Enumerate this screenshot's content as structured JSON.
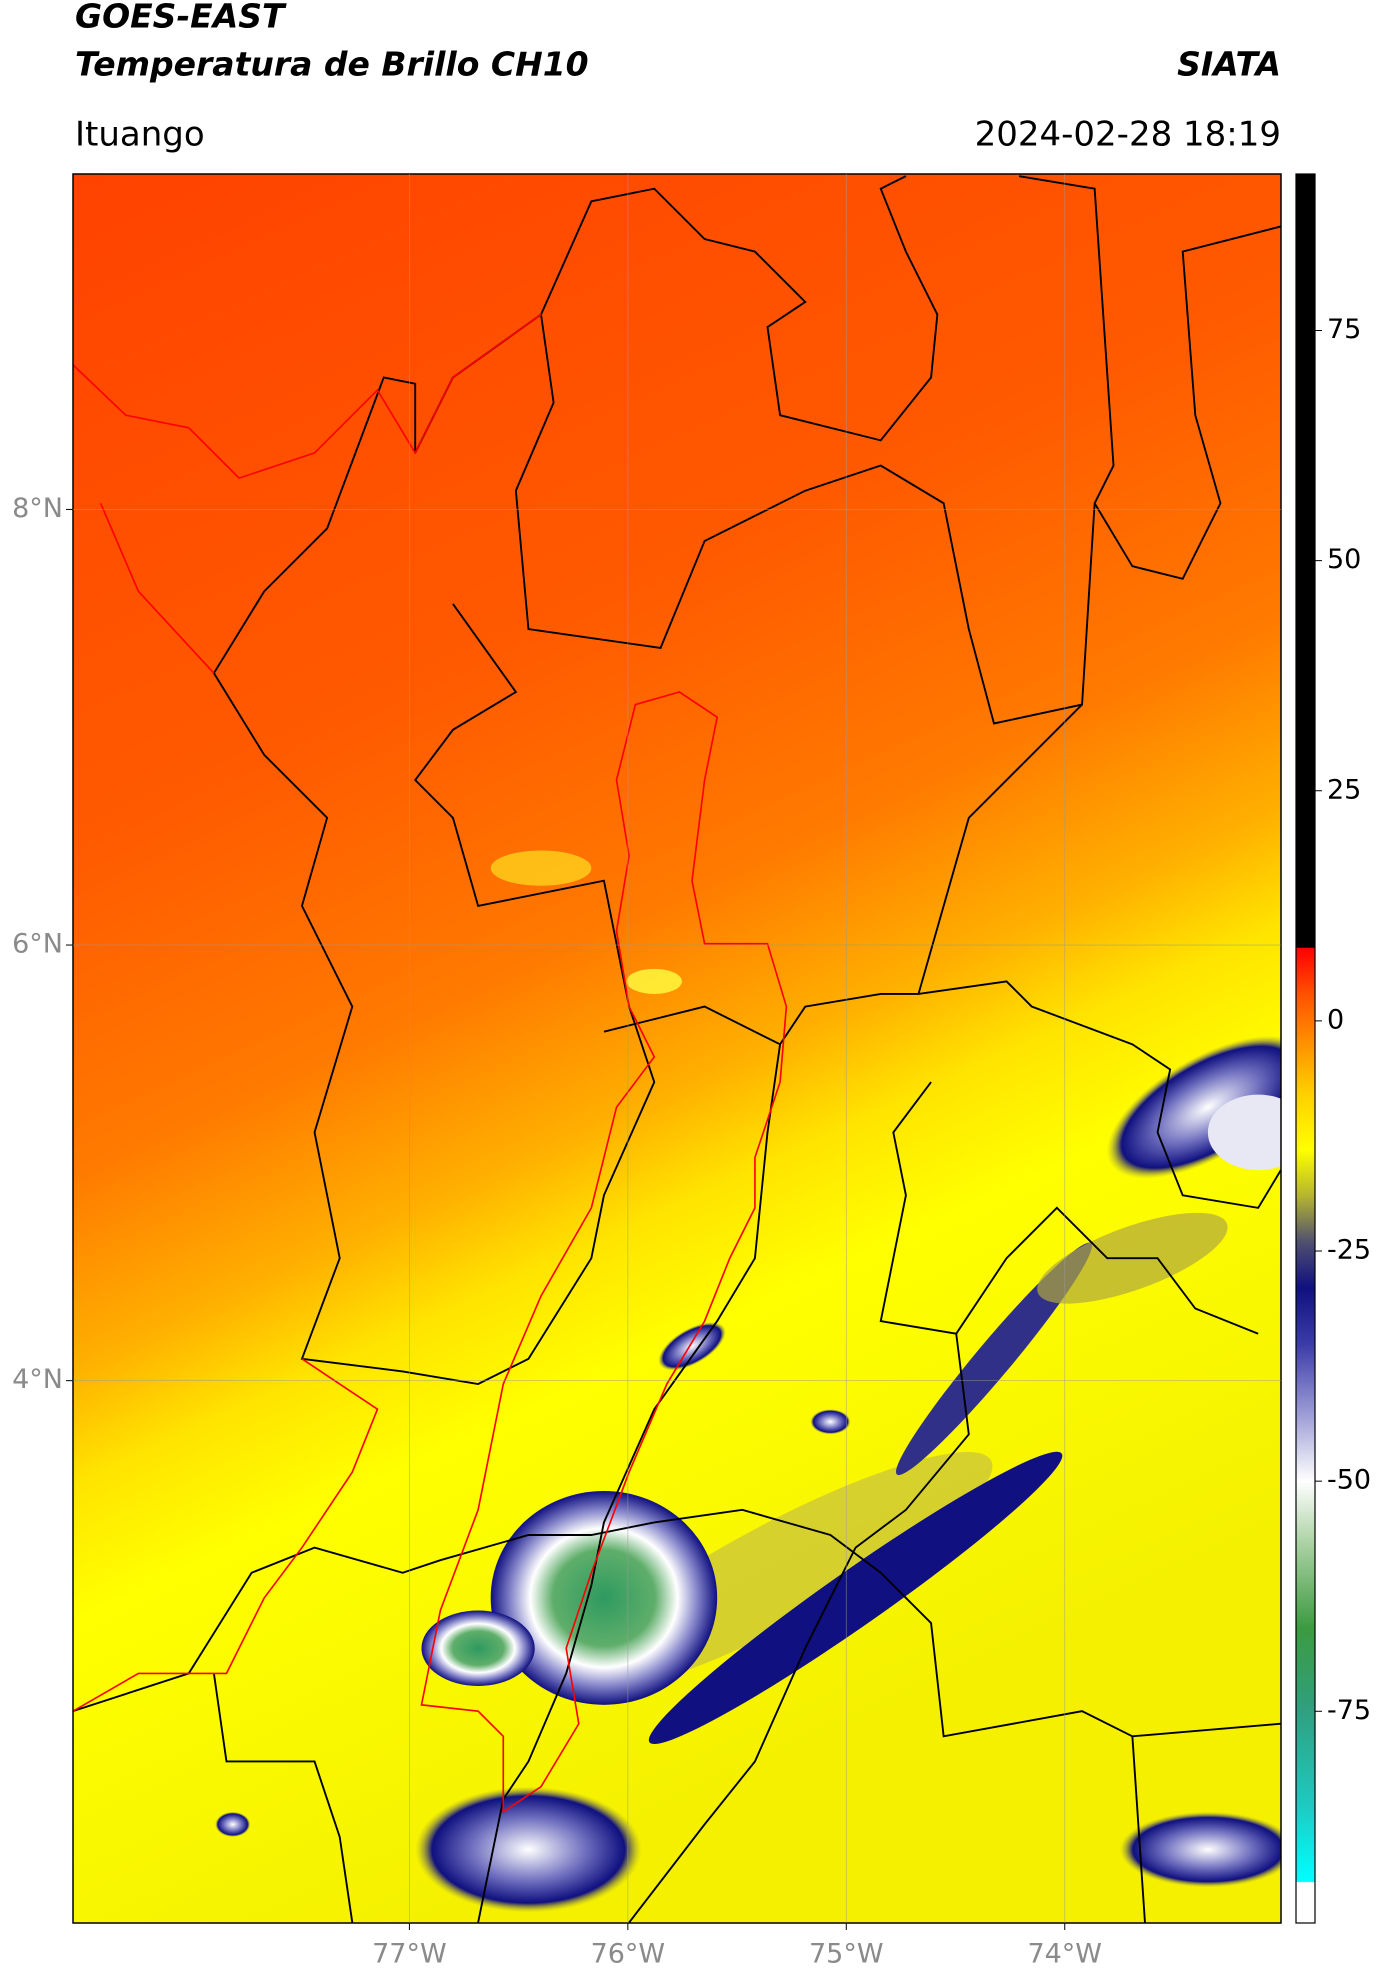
{
  "header": {
    "title": "GOES-EAST",
    "subtitle": "Temperatura de Brillo CH10",
    "source": "SIATA",
    "location": "Ituango",
    "datetime": "2024-02-28 18:19"
  },
  "map": {
    "lonlim": [
      -78.54,
      -73.01
    ],
    "latlim": [
      1.51,
      9.54
    ],
    "lonticks": [
      {
        "value": -77,
        "label": "77°W"
      },
      {
        "value": -76,
        "label": "76°W"
      },
      {
        "value": -75,
        "label": "75°W"
      },
      {
        "value": -74,
        "label": "74°W"
      }
    ],
    "latticks": [
      {
        "value": 8,
        "label": "8°N"
      },
      {
        "value": 6,
        "label": "6°N"
      },
      {
        "value": 4,
        "label": "4°N"
      }
    ],
    "grid": true
  },
  "colorbar": {
    "lim": [
      -98,
      92
    ],
    "ticks": [
      75,
      50,
      25,
      0,
      -25,
      -50,
      -75
    ],
    "colormap": [
      {
        "value": 92,
        "color": "#000000"
      },
      {
        "value": 8,
        "color": "#000000"
      },
      {
        "value": 7.9,
        "color": "#ff0000"
      },
      {
        "value": 3,
        "color": "#ff5000"
      },
      {
        "value": -2,
        "color": "#ff8c00"
      },
      {
        "value": -8,
        "color": "#ffd000"
      },
      {
        "value": -14,
        "color": "#ffff00"
      },
      {
        "value": -19,
        "color": "#b5b530"
      },
      {
        "value": -24,
        "color": "#505070"
      },
      {
        "value": -29,
        "color": "#101080"
      },
      {
        "value": -35,
        "color": "#3a3aa8"
      },
      {
        "value": -43,
        "color": "#a0a0d8"
      },
      {
        "value": -50,
        "color": "#ffffff"
      },
      {
        "value": -57,
        "color": "#a8d0a0"
      },
      {
        "value": -66,
        "color": "#3c9a40"
      },
      {
        "value": -75,
        "color": "#2fa080"
      },
      {
        "value": -85,
        "color": "#20c8c0"
      },
      {
        "value": -93.5,
        "color": "#00ffff"
      },
      {
        "value": -93.6,
        "color": "#ffffff"
      },
      {
        "value": -98,
        "color": "#ffffff"
      }
    ]
  }
}
